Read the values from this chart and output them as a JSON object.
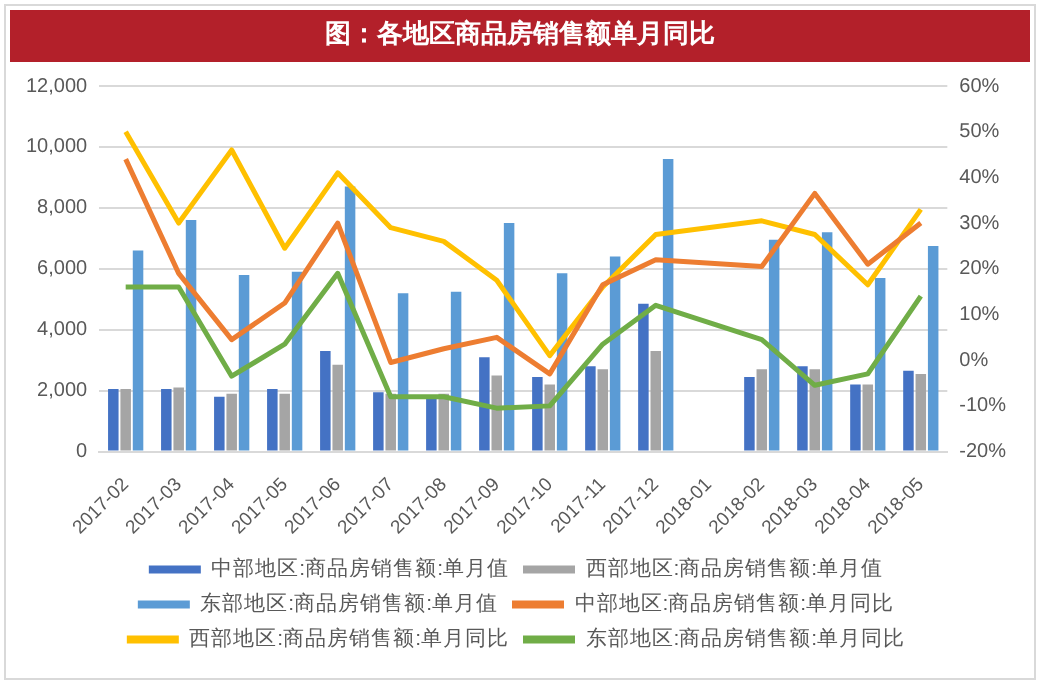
{
  "chart_data": {
    "type": "bar",
    "title": "图：各地区商品房销售额单月同比",
    "categories": [
      "2017-02",
      "2017-03",
      "2017-04",
      "2017-05",
      "2017-06",
      "2017-07",
      "2017-08",
      "2017-09",
      "2017-10",
      "2017-11",
      "2017-12",
      "2018-01",
      "2018-02",
      "2018-03",
      "2018-04",
      "2018-05"
    ],
    "series": [
      {
        "name": "中部地区:商品房销售额:单月值",
        "color": "#4472c4",
        "values": [
          2050,
          2050,
          1800,
          2050,
          3300,
          1950,
          1850,
          3100,
          2450,
          2800,
          4850,
          null,
          2450,
          2800,
          2200,
          2650
        ]
      },
      {
        "name": "西部地区:商品房销售额:单月值",
        "color": "#a5a5a5",
        "values": [
          2050,
          2100,
          1900,
          1900,
          2850,
          1900,
          1900,
          2500,
          2200,
          2700,
          3300,
          null,
          2700,
          2700,
          2200,
          2550
        ]
      },
      {
        "name": "东部地区:商品房销售额:单月值",
        "color": "#5b9bd5",
        "values": [
          6600,
          7600,
          5800,
          5900,
          8700,
          5200,
          5250,
          7500,
          5850,
          6400,
          9600,
          null,
          6950,
          7200,
          5700,
          6750
        ]
      },
      {
        "name": "中部地区:商品房销售额:单月同比",
        "type": "line",
        "axis": "y2",
        "color": "#ed7d31",
        "values": [
          44,
          19,
          4.5,
          12.5,
          30,
          -0.5,
          2.5,
          5,
          -3,
          16.5,
          22,
          null,
          20.5,
          36.5,
          21,
          30
        ]
      },
      {
        "name": "西部地区:商品房销售额:单月同比",
        "type": "line",
        "axis": "y2",
        "color": "#ffc000",
        "values": [
          50,
          30,
          46,
          24.5,
          41,
          29,
          26,
          17.5,
          1,
          16,
          27.5,
          null,
          30.5,
          27.5,
          16.5,
          33
        ]
      },
      {
        "name": "东部地区:商品房销售额:单月同比",
        "type": "line",
        "axis": "y2",
        "color": "#70ad47",
        "values": [
          16,
          16,
          -3.5,
          3.5,
          19,
          -8,
          -8,
          -10.5,
          -10,
          3.5,
          12,
          null,
          4.5,
          -5.5,
          -3,
          14
        ]
      }
    ],
    "ylim": [
      0,
      12000
    ],
    "yticks": [
      0,
      {
        "value": 2000,
        "label": "2,000"
      },
      {
        "value": 4000,
        "label": "4,000"
      },
      {
        "value": 6000,
        "label": "6,000"
      },
      {
        "value": 8000,
        "label": "8,000"
      },
      {
        "value": 10000,
        "label": "10,000"
      },
      {
        "value": 12000,
        "label": "12,000"
      }
    ],
    "y2lim": [
      -20,
      60
    ],
    "y2ticks": [
      {
        "value": -20,
        "label": "-20%"
      },
      {
        "value": -10,
        "label": "-10%"
      },
      {
        "value": 0,
        "label": "0%"
      },
      {
        "value": 10,
        "label": "10%"
      },
      {
        "value": 20,
        "label": "20%"
      },
      {
        "value": 30,
        "label": "30%"
      },
      {
        "value": 40,
        "label": "40%"
      },
      {
        "value": 50,
        "label": "50%"
      },
      {
        "value": 60,
        "label": "60%"
      }
    ],
    "grid": "y",
    "legend": "bottom",
    "marker": "none",
    "line_style": "solid"
  }
}
